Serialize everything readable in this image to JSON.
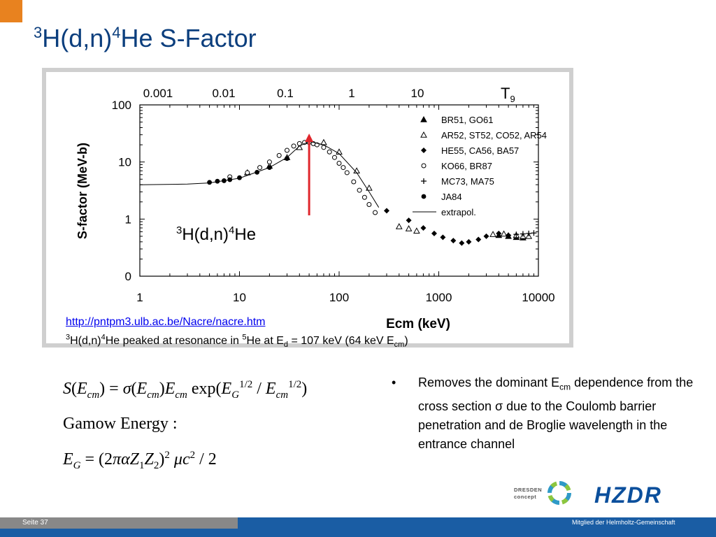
{
  "slide": {
    "title_sup1": "3",
    "title_mid": "H(d,n)",
    "title_sup2": "4",
    "title_end": "He S-Factor"
  },
  "chart_data": {
    "type": "scatter",
    "xscale": "log",
    "x_range": [
      1,
      10000
    ],
    "y_range": [
      0,
      100
    ],
    "xlabel": "Ecm (keV)",
    "ylabel": "S-factor (MeV-b)",
    "x_ticks": [
      "1",
      "10",
      "100",
      "1000",
      "10000"
    ],
    "y_ticks": [
      "0",
      "1",
      "10",
      "100"
    ],
    "top_axis_label": "T",
    "top_axis_label_sub": "9",
    "top_ticks": [
      "0.001",
      "0.01",
      "0.1",
      "1",
      "10"
    ],
    "annotation": {
      "sup1": "3",
      "mid": "H(d,n)",
      "sup2": "4",
      "end": "He"
    },
    "resonance_arrow_x": 50,
    "legend_position": "upper-right",
    "series": [
      {
        "name": "BR51, GO61",
        "marker": "triangle-filled",
        "x": [
          4000,
          5000,
          6000,
          7000
        ],
        "y": [
          0.52,
          0.5,
          0.48,
          0.47
        ]
      },
      {
        "name": "AR52, ST52, CO52, AR54",
        "marker": "triangle-open",
        "x": [
          12,
          20,
          30,
          40,
          50,
          70,
          100,
          150,
          200,
          400,
          500,
          600,
          3500,
          4500,
          6000,
          7000,
          8000
        ],
        "y": [
          6.5,
          8.5,
          12,
          18,
          23,
          22,
          15,
          7,
          3.5,
          0.74,
          0.68,
          0.62,
          0.54,
          0.55,
          0.52,
          0.5,
          0.5
        ]
      },
      {
        "name": "HE55, CA56, BA57",
        "marker": "diamond-filled",
        "x": [
          300,
          500,
          700,
          900,
          1100,
          1400,
          1700,
          2000,
          2500,
          3000,
          4000,
          5000
        ],
        "y": [
          1.4,
          0.95,
          0.7,
          0.56,
          0.48,
          0.42,
          0.38,
          0.4,
          0.44,
          0.5,
          0.56,
          0.52
        ]
      },
      {
        "name": "KO66, BR87",
        "marker": "circle-open",
        "x": [
          8,
          12,
          16,
          20,
          25,
          30,
          35,
          40,
          45,
          50,
          55,
          60,
          70,
          80,
          90,
          100,
          110,
          120,
          140,
          160,
          180,
          200,
          230
        ],
        "y": [
          5.5,
          6.5,
          8,
          10,
          13,
          16,
          19,
          21,
          22,
          22,
          21,
          20,
          18,
          15,
          12,
          9.5,
          8,
          6.5,
          4.5,
          3.2,
          2.4,
          1.8,
          1.3
        ]
      },
      {
        "name": "MC73, MA75",
        "marker": "plus",
        "x": [
          5000,
          6000,
          7000,
          8000,
          9000
        ],
        "y": [
          0.52,
          0.54,
          0.55,
          0.56,
          0.57
        ]
      },
      {
        "name": "JA84",
        "marker": "circle-filled",
        "x": [
          5,
          6,
          7,
          8,
          10,
          15,
          20,
          30
        ],
        "y": [
          4.4,
          4.6,
          4.7,
          4.9,
          5.3,
          6.6,
          8,
          11.5
        ]
      },
      {
        "name": "extrapol.",
        "marker": "line",
        "x": [
          1,
          3,
          5,
          10,
          20,
          30,
          40,
          50,
          70,
          100,
          150,
          200,
          250
        ],
        "y": [
          4,
          4.1,
          4.3,
          5.2,
          8,
          12,
          19,
          23,
          20,
          14,
          6.5,
          3,
          1.6
        ]
      }
    ]
  },
  "caption": {
    "link": "http://pntpm3.ulb.ac.be/Nacre/nacre.htm",
    "sup1": "3",
    "t1": "H(d,n)",
    "sup2": "4",
    "t2": "He peaked at resonance in ",
    "sup3": "5",
    "t3": "He at E",
    "sub1": "d",
    "t4": " = 107 keV (64 keV E",
    "sub2": "cm",
    "t5": ")"
  },
  "formulas": {
    "gamow_label": "Gamow Energy :"
  },
  "bullet": {
    "dot": "•",
    "t1": "Removes the dominant E",
    "sub": "cm",
    "t2": " dependence from the cross section σ due to the Coulomb barrier penetration and de Broglie wavelength in the entrance channel"
  },
  "logos": {
    "dresden_line1": "DRESDEN",
    "dresden_line2": "concept",
    "hzdr": "HZDR"
  },
  "footer": {
    "page": "Seite 37",
    "member": "Mitglied der Helmholtz-Gemeinschaft"
  }
}
